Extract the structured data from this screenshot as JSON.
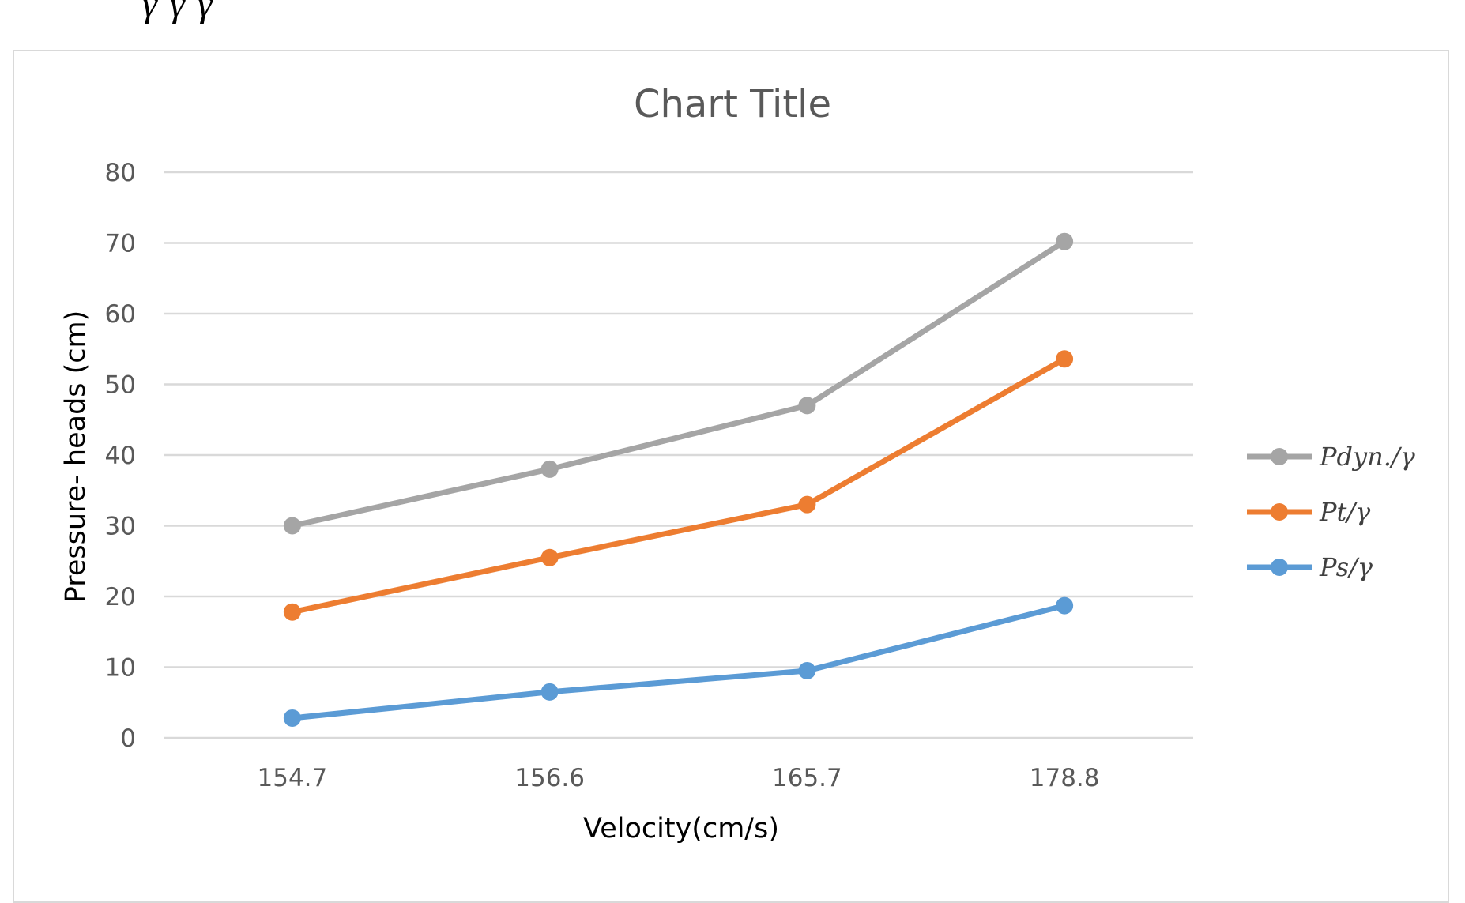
{
  "page_fragment_text": "γ γ γ",
  "chart_data": {
    "type": "line",
    "title": "Chart Title",
    "xlabel": "Velocity(cm/s)",
    "ylabel": "Pressure- heads (cm)",
    "categories": [
      "154.7",
      "156.6",
      "165.7",
      "178.8"
    ],
    "ylim": [
      0,
      80
    ],
    "yticks": [
      0,
      10,
      20,
      30,
      40,
      50,
      60,
      70,
      80
    ],
    "grid": true,
    "legend_position": "right",
    "series": [
      {
        "name": "Pdyn./γ",
        "color": "#a5a5a5",
        "values": [
          30,
          38,
          47,
          70.2
        ]
      },
      {
        "name": "Pt/γ",
        "color": "#ed7d31",
        "values": [
          17.8,
          25.5,
          33,
          53.6
        ]
      },
      {
        "name": "Ps/γ",
        "color": "#5b9bd5",
        "values": [
          2.8,
          6.5,
          9.5,
          18.7
        ]
      }
    ]
  }
}
